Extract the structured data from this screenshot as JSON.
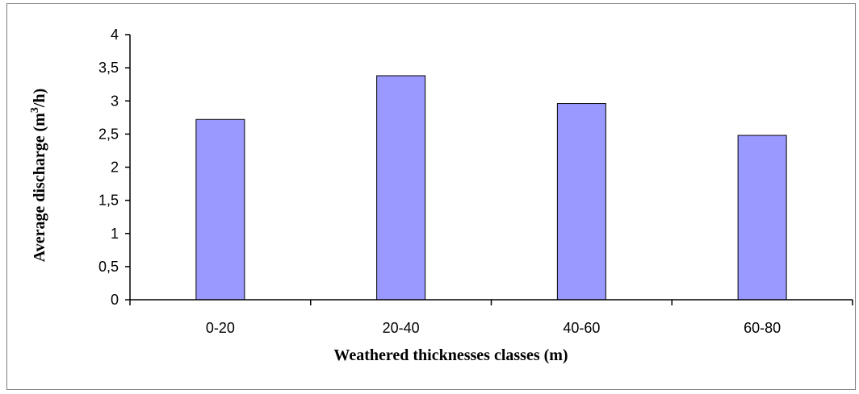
{
  "chart_data": {
    "type": "bar",
    "categories": [
      "0-20",
      "20-40",
      "40-60",
      "60-80"
    ],
    "values": [
      2.72,
      3.38,
      2.96,
      2.48
    ],
    "xlabel": "Weathered thicknesses classes (m)",
    "ylabel": {
      "prefix": "Average discharge (m",
      "sup": "3",
      "suffix": "/h)"
    },
    "ylim": [
      0,
      4
    ],
    "y_ticks": [
      "0",
      "0,5",
      "1",
      "1,5",
      "2",
      "2,5",
      "3",
      "3,5",
      "4"
    ],
    "grid": false,
    "legend": "none",
    "colors": {
      "bar_fill": "#9999ff",
      "bar_stroke": "#000000"
    }
  }
}
